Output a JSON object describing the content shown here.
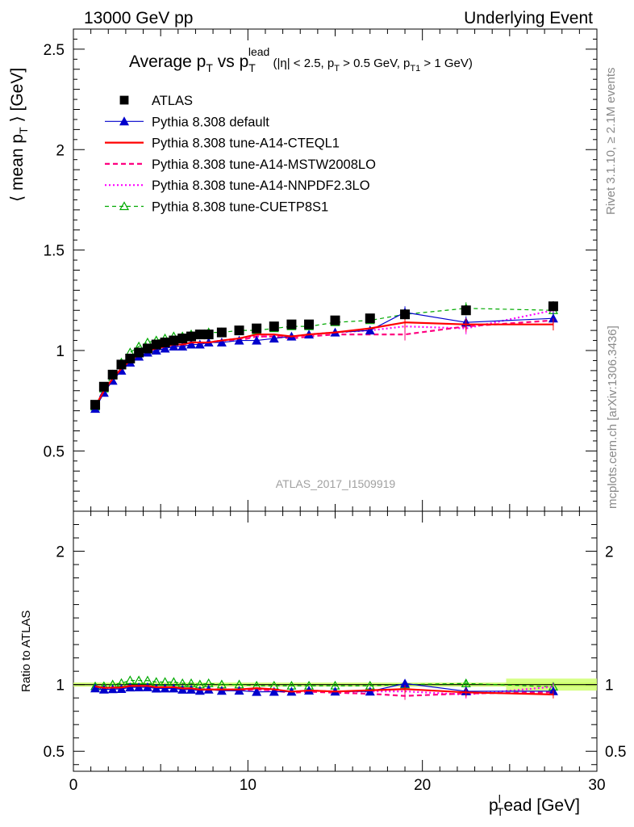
{
  "header": {
    "left": "13000 GeV pp",
    "right": "Underlying Event"
  },
  "side_labels": {
    "rivet": "Rivet 3.1.10, ≥ 2.1M events",
    "mcplots": "mcplots.cern.ch [arXiv:1306.3436]"
  },
  "analysis_id": "ATLAS_2017_I1509919",
  "title": {
    "main": "Average p",
    "main_sub": "T",
    "vs": " vs p",
    "vs_sub": "T",
    "vs_sup": "lead",
    "cuts_a": " (|η| < 2.5, p",
    "cuts_a_sub": "T",
    "cuts_b": " > 0.5 GeV, p",
    "cuts_b_sub": "T1",
    "cuts_c": " > 1 GeV)"
  },
  "axis_labels": {
    "ylabel_a": "⟨ mean p",
    "ylabel_sub": "T",
    "ylabel_b": " ⟩ [GeV]",
    "ratio_ylabel": "Ratio to ATLAS",
    "xlabel_a": "p",
    "xlabel_sup": "l",
    "xlabel_sub": "T",
    "xlabel_b": "ead [GeV]"
  },
  "colors": {
    "data": "#000000",
    "default": "#0000cc",
    "cteql1": "#ff0000",
    "mstw": "#ff0080",
    "nnpdf": "#ff00ff",
    "cuetp8s1": "#00aa00",
    "band": "#ccff66"
  },
  "chart_data": {
    "type": "scatter",
    "xlim": [
      0,
      30
    ],
    "ylim": [
      0.2,
      2.6
    ],
    "ratio_ylim": [
      0.35,
      2.3
    ],
    "x_ticks": [
      "0",
      "10",
      "20",
      "30"
    ],
    "y_ticks": [
      "0.5",
      "1",
      "1.5",
      "2",
      "2.5"
    ],
    "ratio_y_ticks": [
      "0.5",
      "1",
      "2"
    ],
    "legend_position": "top-left",
    "x": [
      1.25,
      1.75,
      2.25,
      2.75,
      3.25,
      3.75,
      4.25,
      4.75,
      5.25,
      5.75,
      6.25,
      6.75,
      7.25,
      7.75,
      8.5,
      9.5,
      10.5,
      11.5,
      12.5,
      13.5,
      15.0,
      17.0,
      19.0,
      22.5,
      27.5
    ],
    "series": [
      {
        "name": "ATLAS",
        "key": "data",
        "values": [
          0.73,
          0.82,
          0.88,
          0.93,
          0.96,
          0.99,
          1.01,
          1.03,
          1.04,
          1.05,
          1.06,
          1.07,
          1.08,
          1.08,
          1.09,
          1.1,
          1.11,
          1.12,
          1.13,
          1.13,
          1.15,
          1.16,
          1.18,
          1.2,
          1.22
        ]
      },
      {
        "name": "Pythia 8.308 default",
        "key": "default",
        "values": [
          0.71,
          0.79,
          0.85,
          0.9,
          0.94,
          0.97,
          0.99,
          1.0,
          1.01,
          1.02,
          1.02,
          1.03,
          1.03,
          1.04,
          1.04,
          1.05,
          1.05,
          1.06,
          1.07,
          1.08,
          1.09,
          1.1,
          1.19,
          1.14,
          1.16
        ]
      },
      {
        "name": "Pythia 8.308 tune-A14-CTEQL1",
        "key": "cteql1",
        "values": [
          0.72,
          0.8,
          0.86,
          0.91,
          0.95,
          0.98,
          1.0,
          1.01,
          1.02,
          1.03,
          1.03,
          1.04,
          1.04,
          1.04,
          1.05,
          1.06,
          1.08,
          1.08,
          1.07,
          1.08,
          1.09,
          1.11,
          1.14,
          1.13,
          1.13
        ]
      },
      {
        "name": "Pythia 8.308 tune-A14-MSTW2008LO",
        "key": "mstw",
        "values": [
          0.72,
          0.8,
          0.86,
          0.91,
          0.95,
          0.98,
          1.0,
          1.01,
          1.02,
          1.02,
          1.03,
          1.03,
          1.04,
          1.04,
          1.05,
          1.05,
          1.07,
          1.07,
          1.06,
          1.07,
          1.08,
          1.08,
          1.08,
          1.12,
          1.15
        ]
      },
      {
        "name": "Pythia 8.308 tune-A14-NNPDF2.3LO",
        "key": "nnpdf",
        "values": [
          0.72,
          0.8,
          0.86,
          0.91,
          0.95,
          0.98,
          1.0,
          1.01,
          1.02,
          1.03,
          1.03,
          1.04,
          1.04,
          1.04,
          1.05,
          1.06,
          1.07,
          1.07,
          1.07,
          1.08,
          1.09,
          1.1,
          1.12,
          1.11,
          1.2
        ]
      },
      {
        "name": "Pythia 8.308 tune-CUETP8S1",
        "key": "cuetp8s1",
        "values": [
          0.72,
          0.81,
          0.88,
          0.94,
          0.99,
          1.02,
          1.04,
          1.05,
          1.06,
          1.07,
          1.07,
          1.08,
          1.08,
          1.09,
          1.09,
          1.1,
          1.1,
          1.11,
          1.12,
          1.12,
          1.14,
          1.15,
          1.18,
          1.21,
          1.2
        ]
      }
    ]
  }
}
